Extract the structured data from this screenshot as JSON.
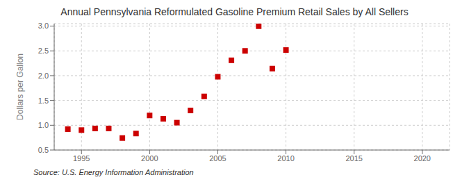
{
  "chart_data": {
    "type": "scatter",
    "title": "Annual Pennsylvania Reformulated Gasoline Premium Retail Sales by All Sellers",
    "y_label": "Dollars per Gallon",
    "annotations": [
      "Source: U.S. Energy Information Administration"
    ],
    "x": [
      1994,
      1995,
      1996,
      1997,
      1998,
      1999,
      2000,
      2001,
      2002,
      2003,
      2004,
      2005,
      2006,
      2007,
      2008,
      2009,
      2010
    ],
    "values": [
      0.921,
      0.902,
      0.935,
      0.935,
      0.742,
      0.833,
      1.197,
      1.13,
      1.052,
      1.298,
      1.582,
      1.978,
      2.31,
      2.5,
      2.998,
      2.143,
      2.517
    ],
    "color": "#cc0000",
    "marker": "square",
    "xlim": [
      1993,
      2022
    ],
    "ylim": [
      0.5,
      3.05
    ],
    "xticks": [
      1995,
      2000,
      2005,
      2010,
      2015,
      2020
    ],
    "yticks": [
      0.5,
      {
        "value": 1.0,
        "label": "1.0"
      },
      1.5,
      {
        "value": 2.0,
        "label": "2.0"
      },
      2.5,
      {
        "value": 3.0,
        "label": "3.0"
      }
    ],
    "grid": true
  }
}
